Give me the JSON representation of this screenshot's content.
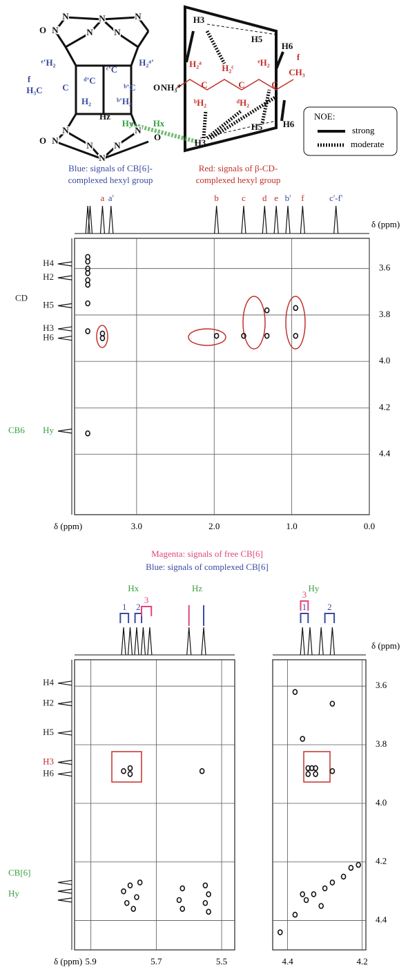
{
  "scheme": {
    "cd_labels": [
      "H3",
      "H5",
      "H6",
      "H₂ᵃ",
      "H₂ᶜ",
      "ᵉH₂",
      "f",
      "CH₃",
      "C",
      "C",
      "C",
      "ᵇH₂",
      "ᵈH₂",
      "H5",
      "H6",
      "H3"
    ],
    "ammonium": "NH₃⁺",
    "cb6_labels": [
      "ᵉ'H₂",
      "H₂ᵃ'",
      "f",
      "H₃C",
      "C",
      "ᶜ'C",
      "ᵈ'C",
      "ᵇ'C",
      "H₂",
      "ᵇ'H₂"
    ],
    "hz": "Hz",
    "hy": "Hy",
    "hx": "Hx",
    "atoms_n": [
      "N",
      "N",
      "N",
      "N",
      "N",
      "N",
      "N",
      "N",
      "N",
      "N",
      "N",
      "N"
    ],
    "atoms_o": [
      "O",
      "O",
      "O",
      "O"
    ],
    "noe": {
      "title": "NOE:",
      "strong": "strong",
      "moderate": "moderate"
    }
  },
  "captions": {
    "blue": [
      "Blue: signals of CB[6]-",
      "complexed hexyl group"
    ],
    "red": [
      "Red: signals of β-CD-",
      "complexed hexyl group"
    ]
  },
  "panel_a": {
    "xlim": [
      3.8,
      0.0
    ],
    "ylim": [
      3.47,
      4.66
    ],
    "xticks": [
      {
        "value": 3,
        "label": "3.0"
      },
      {
        "value": 2,
        "label": "2.0"
      },
      {
        "value": 1,
        "label": "1.0"
      },
      {
        "value": 0,
        "label": "0.0"
      }
    ],
    "yticks": [
      3.6,
      3.8,
      {
        "value": 4,
        "label": "4.0"
      },
      4.2,
      4.4
    ],
    "x_label": "δ (ppm)",
    "spectrum_axis_label": "δ (ppm)",
    "spectrum": [
      {
        "ppm": 3.63
      },
      {
        "ppm": 3.6
      },
      {
        "ppm": 3.44,
        "label": "a",
        "color": "#c0302a"
      },
      {
        "ppm": 3.33,
        "label": "a'",
        "color": "#3a4aa0"
      },
      {
        "ppm": 1.97,
        "label": "b",
        "color": "#c0302a"
      },
      {
        "ppm": 1.62,
        "label": "c",
        "color": "#c0302a"
      },
      {
        "ppm": 1.35,
        "label": "d",
        "color": "#c0302a"
      },
      {
        "ppm": 1.2,
        "label": "e",
        "color": "#c0302a"
      },
      {
        "ppm": 1.05,
        "label": "b'",
        "color": "#3a4aa0"
      },
      {
        "ppm": 0.86,
        "label": "f",
        "color": "#c0302a"
      },
      {
        "ppm": 0.43,
        "label": "c'-f'",
        "color": "#3a4aa0"
      }
    ],
    "projection": [
      {
        "ppm": 3.58,
        "label": "H4",
        "color": "#222"
      },
      {
        "ppm": 3.64,
        "label": "H2",
        "color": "#222"
      },
      {
        "ppm": 3.76,
        "label": "H5",
        "color": "#222"
      },
      {
        "ppm": 3.86,
        "label": "H3",
        "color": "#222"
      },
      {
        "ppm": 3.9,
        "label": "H6",
        "color": "#222"
      },
      {
        "ppm": 4.3,
        "label": "Hy",
        "color": "#3aa040"
      }
    ],
    "projection_notes": [
      {
        "ppm": 3.73,
        "label": "CD",
        "color": "#222"
      },
      {
        "ppm": 4.3,
        "label": "CB6",
        "color": "#3aa040"
      }
    ],
    "cross_peaks": {
      "x": [
        3.63,
        3.63,
        3.63,
        3.63,
        3.63,
        3.63,
        3.63,
        3.63,
        3.63,
        3.44,
        3.44,
        1.97,
        1.62,
        1.32,
        1.32,
        0.95,
        0.95
      ],
      "y": [
        3.55,
        3.57,
        3.6,
        3.62,
        3.65,
        3.67,
        3.75,
        3.87,
        4.31,
        3.88,
        3.9,
        3.89,
        3.89,
        3.78,
        3.89,
        3.77,
        3.89
      ]
    }
  },
  "legend2": [
    {
      "label": "Magenta: signals of free CB[6]",
      "color": "#e0457a"
    },
    {
      "label": "Blue: signals of complexed CB[6]",
      "color": "#3a4aa0"
    }
  ],
  "panel_b": {
    "xlim": [
      5.95,
      5.46
    ],
    "ylim": [
      3.51,
      4.5
    ],
    "xticks": [
      5.9,
      5.7,
      5.5
    ],
    "x_label": "δ (ppm)",
    "spectrum": [
      {
        "ppm": 5.8
      },
      {
        "ppm": 5.78
      },
      {
        "ppm": 5.76
      },
      {
        "ppm": 5.74
      },
      {
        "ppm": 5.72
      },
      {
        "ppm": 5.6
      },
      {
        "ppm": 5.555
      }
    ],
    "brackets": [
      {
        "label": "1",
        "color": "#3a4aa0",
        "ppm": [
          5.81,
          5.785
        ]
      },
      {
        "label": "2",
        "color": "#3a4aa0",
        "ppm": [
          5.765,
          5.745
        ]
      },
      {
        "label": "3",
        "color": "#e0457a",
        "ppm": [
          5.745,
          5.715
        ]
      },
      {
        "ppm": [
          5.6
        ],
        "color": "#e0457a"
      },
      {
        "ppm": [
          5.555
        ],
        "color": "#3a4aa0"
      }
    ],
    "group_labels": [
      {
        "label": "Hx",
        "ppm": 5.77,
        "color": "#3aa040"
      },
      {
        "label": "Hz",
        "ppm": 5.575,
        "color": "#3aa040"
      }
    ],
    "projection": [
      {
        "ppm": 3.59,
        "label": "H4",
        "color": "#222"
      },
      {
        "ppm": 3.66,
        "label": "H2",
        "color": "#222"
      },
      {
        "ppm": 3.76,
        "label": "H5",
        "color": "#222"
      },
      {
        "ppm": 3.86,
        "label": "H3",
        "color": "#c0302a"
      },
      {
        "ppm": 3.9,
        "label": "H6",
        "color": "#222"
      },
      {
        "ppm": 4.27
      },
      {
        "ppm": 4.3
      },
      {
        "ppm": 4.33
      }
    ],
    "projection_notes": [
      {
        "ppm": 4.24,
        "label": "CB[6]",
        "color": "#3aa040"
      },
      {
        "ppm": 4.31,
        "label": "Hy",
        "color": "#3aa040"
      }
    ],
    "cross_peaks": {
      "x": [
        5.8,
        5.78,
        5.78,
        5.56,
        5.8,
        5.78,
        5.76,
        5.79,
        5.75,
        5.77,
        5.62,
        5.63,
        5.62,
        5.55,
        5.54,
        5.55,
        5.54
      ],
      "y": [
        3.89,
        3.88,
        3.9,
        3.89,
        4.3,
        4.28,
        4.32,
        4.34,
        4.27,
        4.36,
        4.29,
        4.33,
        4.36,
        4.28,
        4.31,
        4.34,
        4.37
      ]
    }
  },
  "panel_c": {
    "xlim": [
      4.44,
      4.19
    ],
    "ylim": [
      3.51,
      4.5
    ],
    "xticks": [
      4.4,
      4.2
    ],
    "yticks": [
      3.6,
      3.8,
      {
        "value": 4,
        "label": "4.0"
      },
      4.2,
      4.4
    ],
    "spectrum_axis_label": "δ (ppm)",
    "spectrum": [
      {
        "ppm": 4.36
      },
      {
        "ppm": 4.34
      },
      {
        "ppm": 4.31
      },
      {
        "ppm": 4.28
      }
    ],
    "brackets": [
      {
        "label": "3",
        "color": "#e0457a",
        "ppm": [
          4.365,
          4.345
        ]
      },
      {
        "label": "1",
        "color": "#3a4aa0",
        "ppm": [
          4.365,
          4.345
        ]
      },
      {
        "label": "2",
        "color": "#3a4aa0",
        "ppm": [
          4.3,
          4.275
        ]
      }
    ],
    "group_labels": [
      {
        "label": "Hy",
        "ppm": 4.33,
        "color": "#3aa040"
      }
    ],
    "cross_peaks": {
      "x": [
        4.38,
        4.36,
        4.28,
        4.345,
        4.335,
        4.325,
        4.345,
        4.325,
        4.28,
        4.42,
        4.38,
        4.35,
        4.33,
        4.3,
        4.28,
        4.25,
        4.23,
        4.21,
        4.36,
        4.31
      ],
      "y": [
        3.62,
        3.78,
        3.66,
        3.88,
        3.88,
        3.88,
        3.9,
        3.9,
        3.89,
        4.44,
        4.38,
        4.33,
        4.31,
        4.29,
        4.27,
        4.25,
        4.22,
        4.21,
        4.31,
        4.35
      ]
    }
  }
}
